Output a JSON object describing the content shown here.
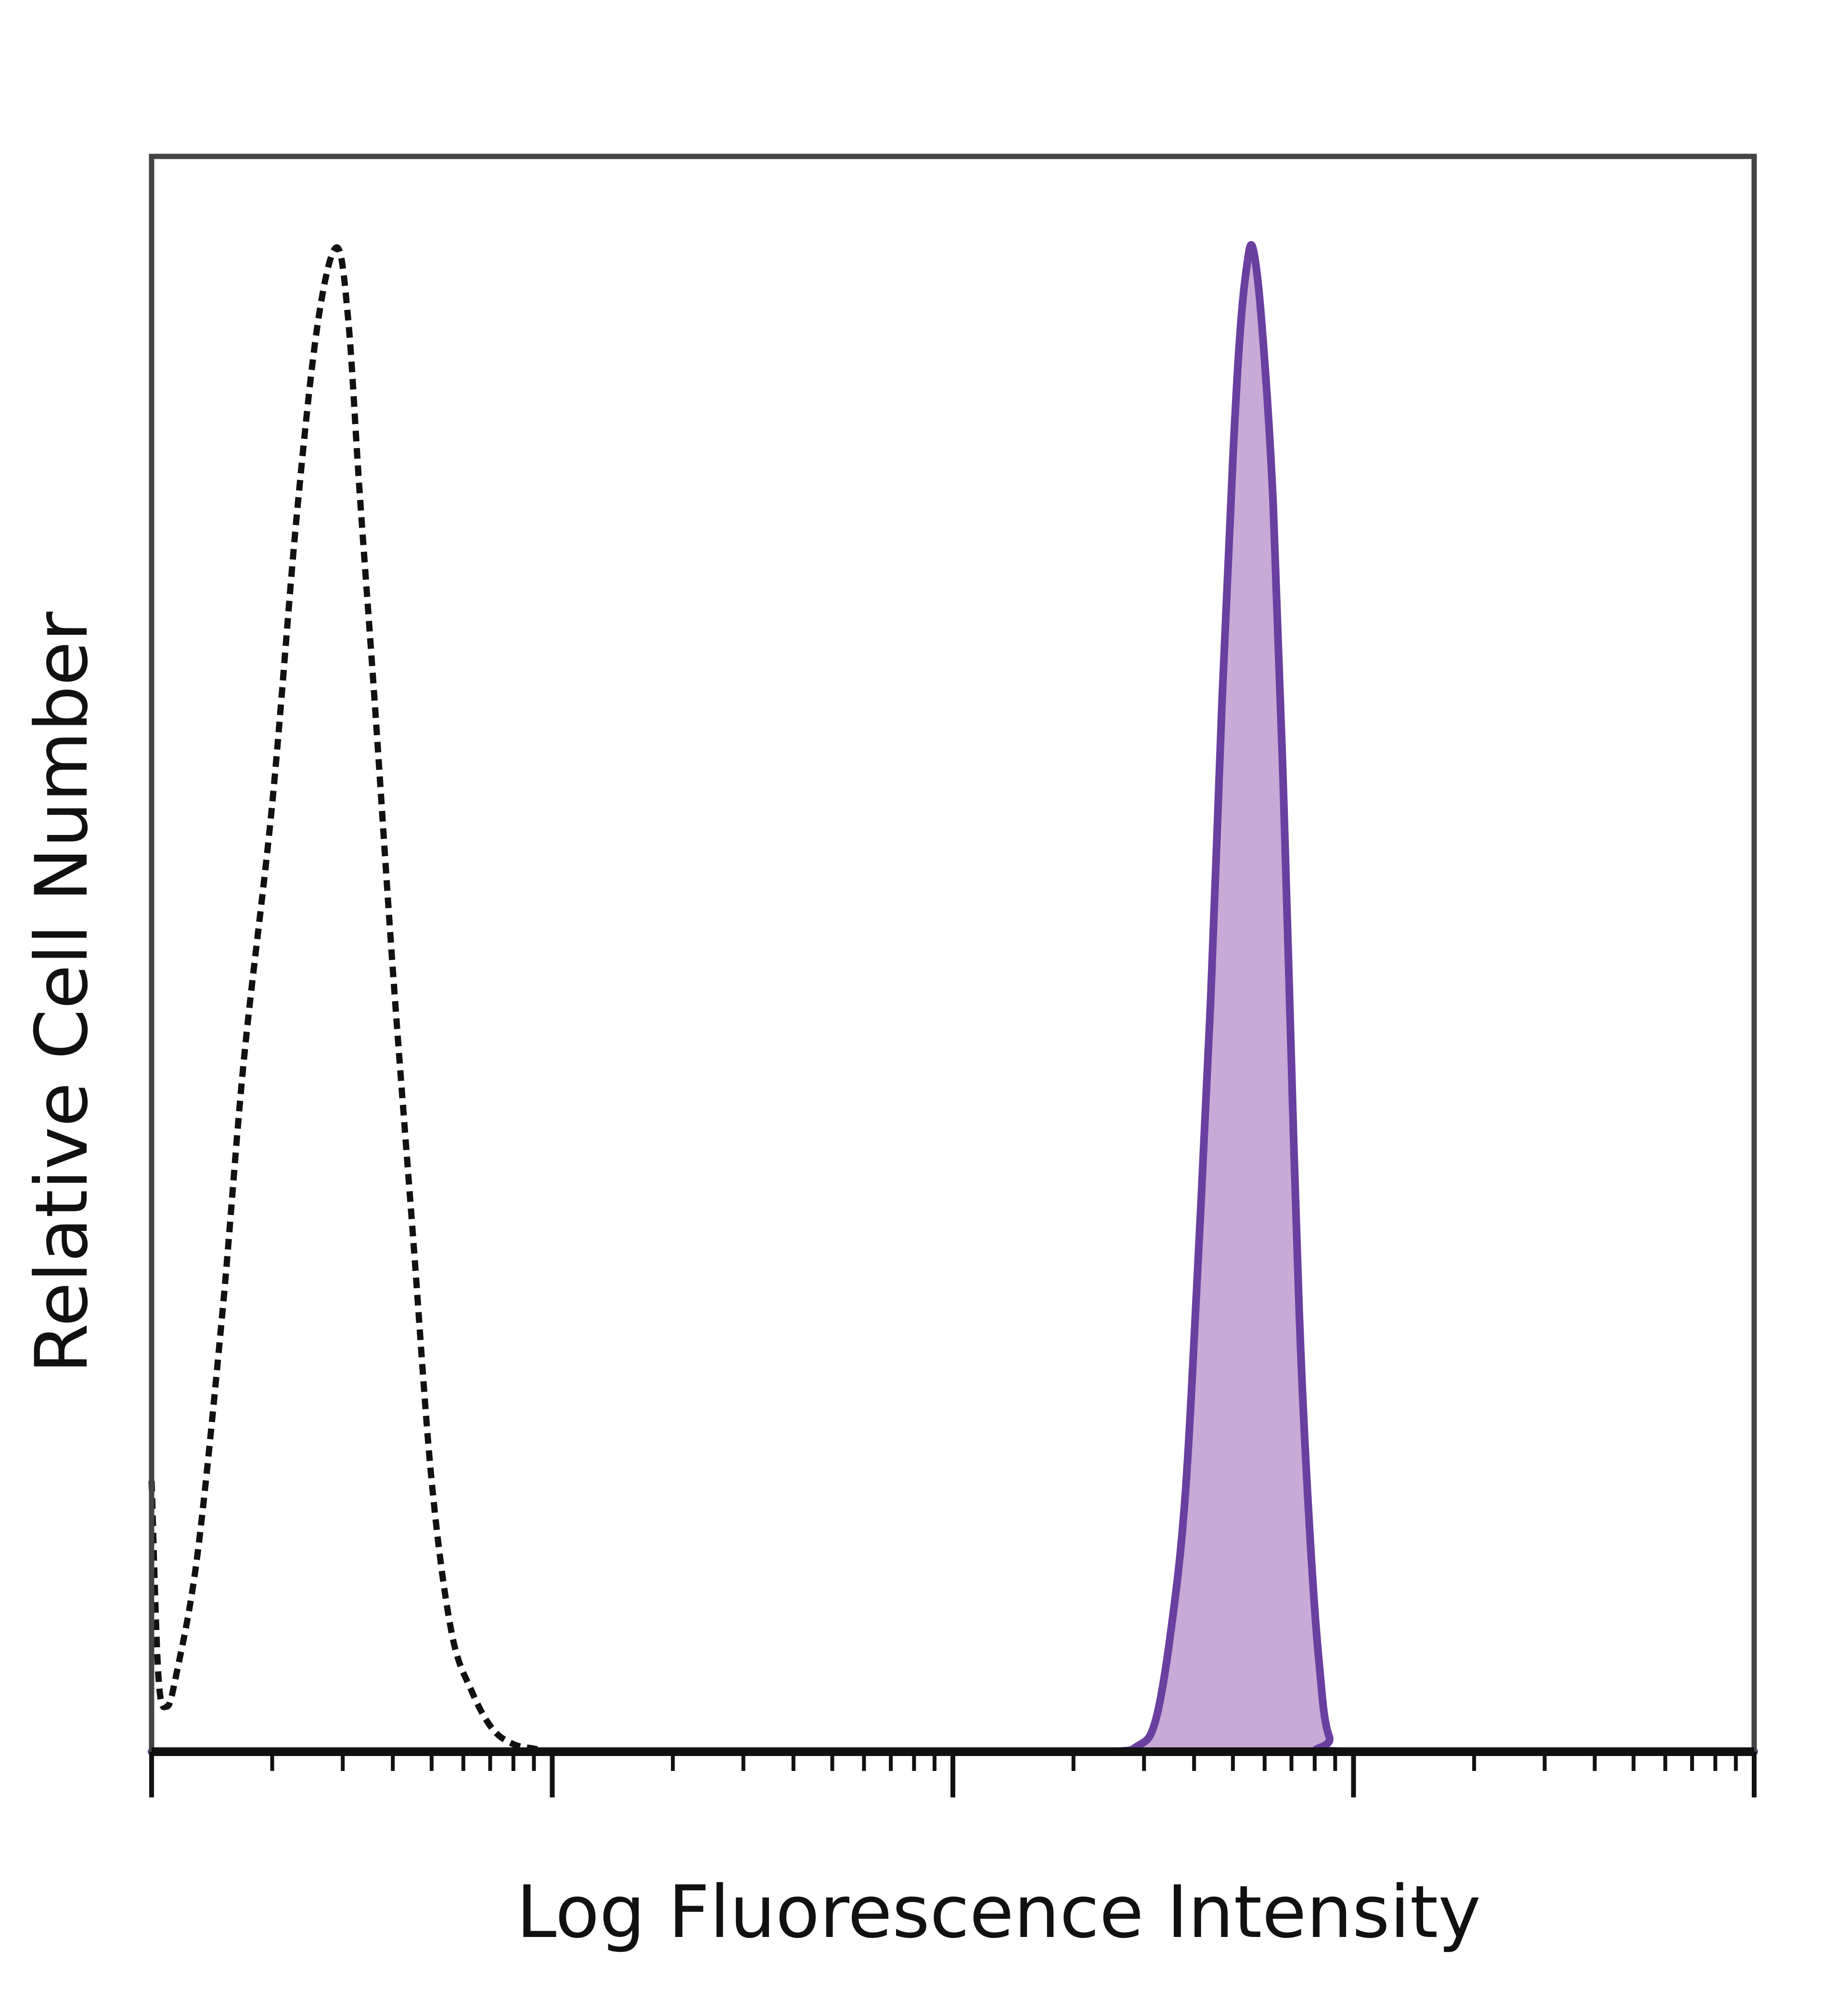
{
  "chart_data": {
    "type": "area",
    "xlabel": "Log Fluorescence Intensity",
    "ylabel": "Relative Cell Number",
    "x_scale": "log",
    "xlim": [
      1,
      10000
    ],
    "ylim": [
      0,
      100
    ],
    "major_ticks": [
      1,
      10,
      100,
      1000,
      10000
    ],
    "grid": false,
    "legend": "none",
    "series": [
      {
        "style": "dashed",
        "filled": false,
        "color": "#111111",
        "x": [
          1,
          1.04,
          1.09,
          1.15,
          1.3,
          1.5,
          1.7,
          2.0,
          2.3,
          2.6,
          2.9,
          3.1,
          3.3,
          3.6,
          4.0,
          4.5,
          5.0,
          5.6,
          6.3,
          7.1,
          8.0,
          9.0,
          10,
          11,
          12.5,
          14
        ],
        "y": [
          18,
          5,
          3,
          5,
          13,
          29,
          46,
          63,
          82,
          95,
          100,
          95,
          84,
          70,
          52,
          34,
          18,
          8,
          4,
          1.5,
          0.5,
          0.2,
          0,
          0,
          0,
          0
        ]
      },
      {
        "style": "solid",
        "filled": true,
        "color": "#6a3fa0",
        "fill": "#c9a9d6",
        "x": [
          1,
          100,
          240,
          290,
          320,
          350,
          380,
          410,
          440,
          470,
          500,
          520,
          540,
          560,
          590,
          630,
          670,
          710,
          740,
          780,
          820,
          870,
          1000,
          10000
        ],
        "y": [
          0,
          0,
          0,
          0.4,
          2,
          8,
          17,
          33,
          50,
          70,
          86,
          94,
          98.5,
          100,
          95,
          83,
          63,
          40,
          26,
          14,
          6,
          1,
          0,
          0
        ]
      }
    ]
  }
}
